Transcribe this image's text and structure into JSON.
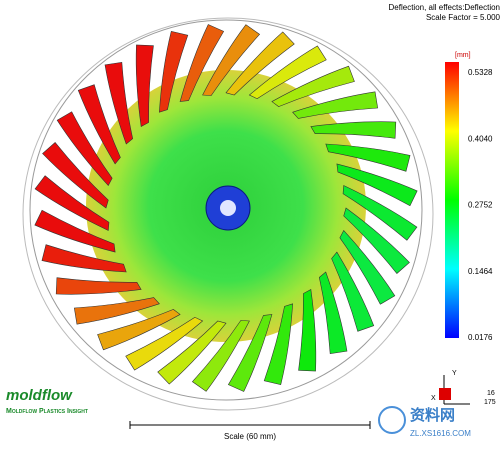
{
  "header": {
    "title": "Deflection, all effects:Deflection",
    "subtitle": "Scale Factor = 5.000"
  },
  "legend": {
    "unit": "[mm]",
    "ticks": [
      "0.5328",
      "0.4040",
      "0.2752",
      "0.1464",
      "0.0176"
    ]
  },
  "scale": {
    "label": "Scale (60 mm)"
  },
  "triad": {
    "y": "Y",
    "x": "X",
    "value": "16",
    "value2": "175"
  },
  "logo": {
    "name": "moldflow",
    "tagline": "Moldflow Plastics Insight"
  },
  "watermark": {
    "name": "资料网",
    "url": "ZL.XS1616.COM"
  }
}
